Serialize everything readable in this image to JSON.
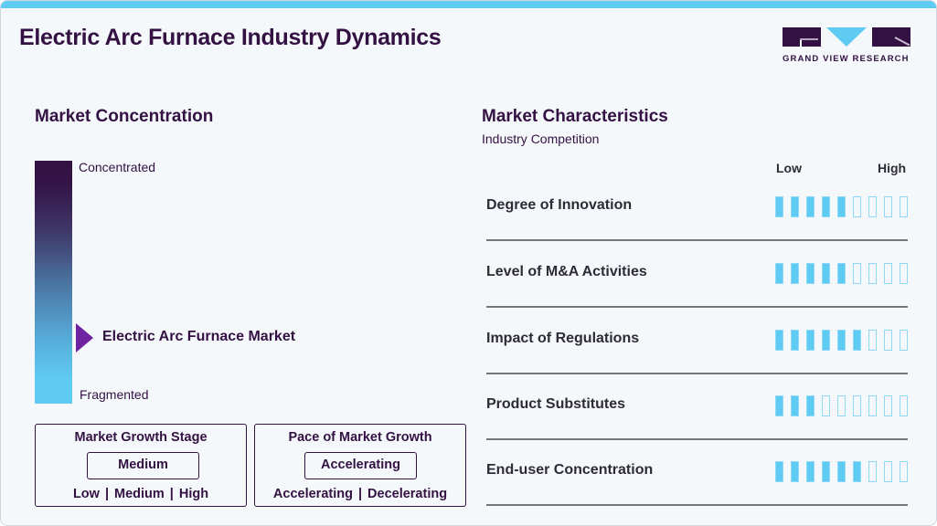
{
  "header": {
    "title": "Electric Arc Furnace Industry Dynamics",
    "brand": "GRAND VIEW RESEARCH"
  },
  "colors": {
    "primary": "#341143",
    "accent": "#5fcbf3",
    "marker": "#6f23a0"
  },
  "concentration": {
    "title": "Market Concentration",
    "top_label": "Concentrated",
    "bottom_label": "Fragmented",
    "marker_label": "Electric Arc Furnace Market",
    "marker_position_pct": 72
  },
  "growth_stage": {
    "title": "Market Growth Stage",
    "value": "Medium",
    "options": [
      "Low",
      "Medium",
      "High"
    ]
  },
  "growth_pace": {
    "title": "Pace of Market Growth",
    "value": "Accelerating",
    "options": [
      "Accelerating",
      "Decelerating"
    ]
  },
  "characteristics": {
    "title": "Market Characteristics",
    "subtitle": "Industry Competition",
    "scale_low": "Low",
    "scale_high": "High",
    "scale_max": 9,
    "rows": [
      {
        "label": "Degree of Innovation",
        "score": 5
      },
      {
        "label": "Level of M&A Activities",
        "score": 5
      },
      {
        "label": "Impact of Regulations",
        "score": 6
      },
      {
        "label": "Product Substitutes",
        "score": 3
      },
      {
        "label": "End-user Concentration",
        "score": 6
      }
    ]
  },
  "chart_data": {
    "type": "table",
    "title": "Market Characteristics - Industry Competition",
    "categories": [
      "Degree of Innovation",
      "Level of M&A Activities",
      "Impact of Regulations",
      "Product Substitutes",
      "End-user Concentration"
    ],
    "values": [
      5,
      5,
      6,
      3,
      6
    ],
    "ylim": [
      0,
      9
    ],
    "xlabel": "",
    "ylabel": "Low - High"
  }
}
